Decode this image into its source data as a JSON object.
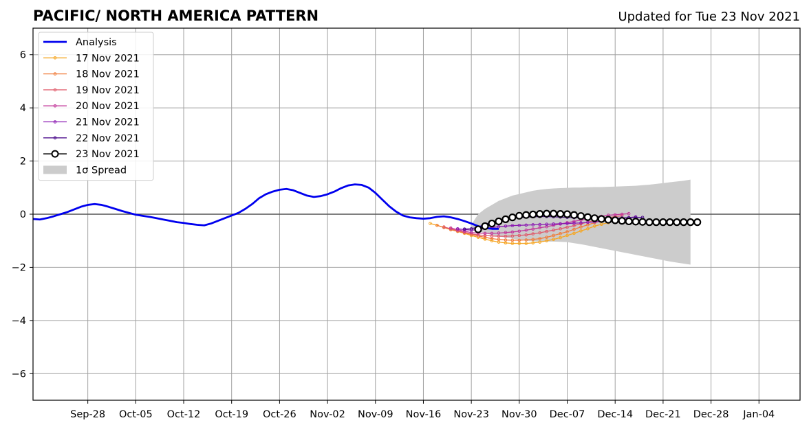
{
  "chart_data": {
    "type": "line",
    "title": "PACIFIC/ NORTH AMERICA PATTERN",
    "subtitle": "Updated for Tue 23 Nov 2021",
    "xlabel": "",
    "ylabel": "",
    "x_domain": [
      "2021-09-20",
      "2022-01-10"
    ],
    "xlim": [
      0,
      112
    ],
    "ylim": [
      -7,
      7
    ],
    "x_ticks": [
      {
        "label": "Sep-28",
        "day": 8
      },
      {
        "label": "Oct-05",
        "day": 15
      },
      {
        "label": "Oct-12",
        "day": 22
      },
      {
        "label": "Oct-19",
        "day": 29
      },
      {
        "label": "Oct-26",
        "day": 36
      },
      {
        "label": "Nov-02",
        "day": 43
      },
      {
        "label": "Nov-09",
        "day": 50
      },
      {
        "label": "Nov-16",
        "day": 57
      },
      {
        "label": "Nov-23",
        "day": 64
      },
      {
        "label": "Nov-30",
        "day": 71
      },
      {
        "label": "Dec-07",
        "day": 78
      },
      {
        "label": "Dec-14",
        "day": 85
      },
      {
        "label": "Dec-21",
        "day": 92
      },
      {
        "label": "Dec-28",
        "day": 99
      },
      {
        "label": "Jan-04",
        "day": 106
      }
    ],
    "y_ticks": [
      {
        "label": "−6",
        "value": -6
      },
      {
        "label": "−4",
        "value": -4
      },
      {
        "label": "−2",
        "value": -2
      },
      {
        "label": "0",
        "value": 0
      },
      {
        "label": "2",
        "value": 2
      },
      {
        "label": "4",
        "value": 4
      },
      {
        "label": "6",
        "value": 6
      }
    ],
    "grid": true,
    "zero_line": true,
    "legend_position": "top-left",
    "analysis": {
      "name": "Analysis",
      "color": "#0000ee",
      "x_start": "2021-09-20",
      "values": [
        -0.18,
        -0.2,
        -0.15,
        -0.08,
        0.0,
        0.08,
        0.18,
        0.28,
        0.35,
        0.38,
        0.35,
        0.28,
        0.2,
        0.12,
        0.05,
        -0.02,
        -0.06,
        -0.1,
        -0.15,
        -0.2,
        -0.25,
        -0.3,
        -0.33,
        -0.37,
        -0.4,
        -0.42,
        -0.35,
        -0.25,
        -0.15,
        -0.05,
        0.05,
        0.2,
        0.38,
        0.6,
        0.75,
        0.85,
        0.92,
        0.95,
        0.9,
        0.8,
        0.7,
        0.65,
        0.68,
        0.75,
        0.85,
        0.98,
        1.08,
        1.12,
        1.1,
        1.0,
        0.8,
        0.55,
        0.3,
        0.1,
        -0.05,
        -0.12,
        -0.15,
        -0.17,
        -0.15,
        -0.1,
        -0.08,
        -0.12,
        -0.18,
        -0.26,
        -0.35,
        -0.45,
        -0.52,
        -0.55,
        -0.55
      ]
    },
    "forecasts": [
      {
        "name": "17 Nov 2021",
        "color": "#f5a623",
        "x_start": "2021-11-17",
        "values": [
          -0.35,
          -0.42,
          -0.5,
          -0.58,
          -0.65,
          -0.72,
          -0.8,
          -0.87,
          -0.94,
          -1.0,
          -1.05,
          -1.08,
          -1.1,
          -1.1,
          -1.1,
          -1.08,
          -1.05,
          -1.0,
          -0.95,
          -0.88,
          -0.8,
          -0.72,
          -0.63,
          -0.55,
          -0.45,
          -0.38,
          -0.32
        ]
      },
      {
        "name": "18 Nov 2021",
        "color": "#f07c3a",
        "x_start": "2021-11-18",
        "values": [
          -0.42,
          -0.5,
          -0.58,
          -0.64,
          -0.7,
          -0.76,
          -0.82,
          -0.87,
          -0.92,
          -0.95,
          -0.97,
          -0.98,
          -0.98,
          -0.97,
          -0.95,
          -0.92,
          -0.87,
          -0.8,
          -0.73,
          -0.66,
          -0.57,
          -0.48,
          -0.4,
          -0.32,
          -0.25,
          -0.2,
          -0.17
        ]
      },
      {
        "name": "19 Nov 2021",
        "color": "#e05a6a",
        "x_start": "2021-11-19",
        "values": [
          -0.48,
          -0.55,
          -0.62,
          -0.68,
          -0.74,
          -0.78,
          -0.8,
          -0.82,
          -0.83,
          -0.83,
          -0.82,
          -0.8,
          -0.78,
          -0.74,
          -0.7,
          -0.65,
          -0.6,
          -0.55,
          -0.49,
          -0.43,
          -0.36,
          -0.3,
          -0.24,
          -0.18,
          -0.13,
          -0.09,
          -0.06
        ]
      },
      {
        "name": "20 Nov 2021",
        "color": "#c2379a",
        "x_start": "2021-11-20",
        "values": [
          -0.52,
          -0.58,
          -0.64,
          -0.69,
          -0.71,
          -0.72,
          -0.72,
          -0.71,
          -0.69,
          -0.67,
          -0.64,
          -0.6,
          -0.56,
          -0.51,
          -0.47,
          -0.42,
          -0.37,
          -0.32,
          -0.27,
          -0.22,
          -0.17,
          -0.12,
          -0.08,
          -0.04,
          -0.02,
          0.0,
          0.02
        ]
      },
      {
        "name": "21 Nov 2021",
        "color": "#8b1ab2",
        "x_start": "2021-11-21",
        "values": [
          -0.55,
          -0.58,
          -0.6,
          -0.58,
          -0.54,
          -0.5,
          -0.47,
          -0.45,
          -0.43,
          -0.42,
          -0.41,
          -0.4,
          -0.39,
          -0.38,
          -0.37,
          -0.36,
          -0.35,
          -0.34,
          -0.33,
          -0.31,
          -0.29,
          -0.26,
          -0.23,
          -0.2,
          -0.17,
          -0.13,
          -0.1
        ]
      },
      {
        "name": "22 Nov 2021",
        "color": "#4b0c8c",
        "x_start": "2021-11-22",
        "values": [
          -0.56,
          -0.55,
          -0.48,
          -0.38,
          -0.3,
          -0.24,
          -0.19,
          -0.16,
          -0.13,
          -0.11,
          -0.1,
          -0.09,
          -0.09,
          -0.1,
          -0.11,
          -0.12,
          -0.13,
          -0.14,
          -0.15,
          -0.16,
          -0.16,
          -0.16,
          -0.15,
          -0.14,
          -0.13,
          -0.12,
          -0.12
        ]
      },
      {
        "name": "23 Nov 2021",
        "color": "#000000",
        "x_start": "2021-11-24",
        "marker": "open-circle",
        "values": [
          -0.57,
          -0.45,
          -0.35,
          -0.27,
          -0.19,
          -0.12,
          -0.06,
          -0.03,
          -0.01,
          0.01,
          0.02,
          0.02,
          0.01,
          0.0,
          -0.03,
          -0.07,
          -0.11,
          -0.15,
          -0.18,
          -0.21,
          -0.23,
          -0.25,
          -0.27,
          -0.28,
          -0.29,
          -0.3,
          -0.3,
          -0.3,
          -0.3,
          -0.3,
          -0.3,
          -0.3,
          -0.3
        ]
      }
    ],
    "spread": {
      "name": "1σ Spread",
      "color": "#cccccc",
      "x_start": "2021-11-23",
      "x_end": "2021-12-25",
      "upper": [
        -0.4,
        0.0,
        0.2,
        0.35,
        0.5,
        0.6,
        0.7,
        0.76,
        0.82,
        0.88,
        0.92,
        0.95,
        0.97,
        0.98,
        0.99,
        1.0,
        1.0,
        1.01,
        1.02,
        1.02,
        1.03,
        1.04,
        1.05,
        1.06,
        1.07,
        1.09,
        1.11,
        1.14,
        1.17,
        1.2,
        1.23,
        1.26,
        1.3
      ],
      "lower": [
        -0.6,
        -0.65,
        -0.72,
        -0.78,
        -0.83,
        -0.88,
        -0.92,
        -0.96,
        -1.0,
        -1.02,
        -1.03,
        -1.03,
        -1.03,
        -1.04,
        -1.05,
        -1.09,
        -1.13,
        -1.18,
        -1.23,
        -1.28,
        -1.33,
        -1.38,
        -1.43,
        -1.48,
        -1.53,
        -1.58,
        -1.63,
        -1.68,
        -1.73,
        -1.78,
        -1.82,
        -1.86,
        -1.9
      ]
    }
  }
}
